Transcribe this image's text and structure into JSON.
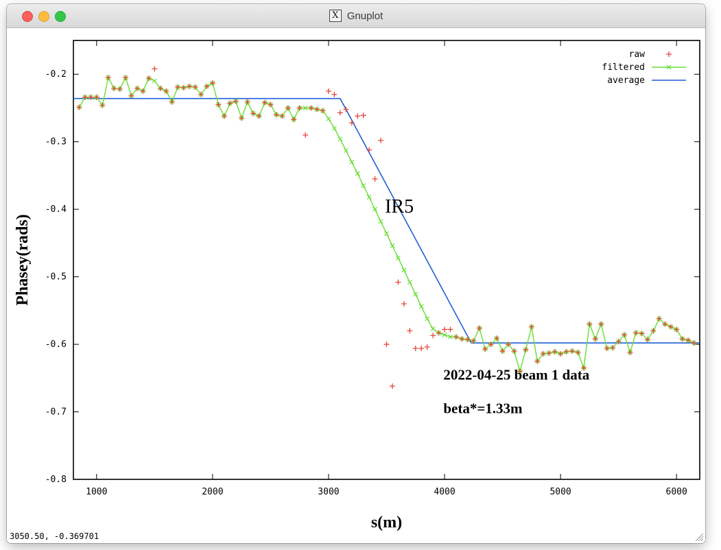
{
  "window": {
    "title": "Gnuplot",
    "title_icon": "x11-icon"
  },
  "status_bar": {
    "coordinates": "3050.50, -0.369701"
  },
  "chart_data": {
    "type": "line",
    "title": "",
    "xlabel": "s(m)",
    "ylabel": "Phasey(rads)",
    "xlim": [
      800,
      6200
    ],
    "ylim": [
      -0.8,
      -0.15
    ],
    "xticks": [
      1000,
      2000,
      3000,
      4000,
      5000,
      6000
    ],
    "yticks": [
      -0.8,
      -0.7,
      -0.6,
      -0.5,
      -0.4,
      -0.3,
      -0.2
    ],
    "ytick_labels": [
      "-0.8",
      "-0.7",
      "-0.6",
      "-0.5",
      "-0.4",
      "-0.3",
      "-0.2"
    ],
    "grid": false,
    "legend_position": "top-right",
    "annotations": [
      {
        "text": "IR5",
        "x": 3610,
        "y": -0.405
      },
      {
        "text": "2022-04-25 beam 1 data",
        "x": 3990,
        "y": -0.652
      },
      {
        "text": "beta*=1.33m",
        "x": 3990,
        "y": -0.702
      }
    ],
    "series": [
      {
        "name": "raw",
        "style": "points",
        "marker": "+",
        "color": "#e8443a",
        "x": [
          850,
          900,
          950,
          1000,
          1050,
          1100,
          1150,
          1200,
          1250,
          1300,
          1350,
          1400,
          1450,
          1500,
          1550,
          1600,
          1650,
          1700,
          1750,
          1800,
          1850,
          1900,
          1950,
          2000,
          2050,
          2100,
          2150,
          2200,
          2250,
          2300,
          2350,
          2400,
          2450,
          2500,
          2550,
          2600,
          2650,
          2700,
          2750,
          2800,
          2850,
          2900,
          2950,
          3000,
          3050,
          3100,
          3150,
          3200,
          3250,
          3300,
          3350,
          3400,
          3450,
          3500,
          3550,
          3600,
          3650,
          3700,
          3750,
          3800,
          3850,
          3900,
          3950,
          4000,
          4050,
          4100,
          4150,
          4200,
          4250,
          4300,
          4350,
          4400,
          4450,
          4500,
          4550,
          4600,
          4650,
          4700,
          4750,
          4800,
          4850,
          4900,
          4950,
          5000,
          5050,
          5100,
          5150,
          5200,
          5250,
          5300,
          5350,
          5400,
          5450,
          5500,
          5550,
          5600,
          5650,
          5700,
          5750,
          5800,
          5850,
          5900,
          5950,
          6000,
          6050,
          6100,
          6150
        ],
        "y": [
          -0.249,
          -0.234,
          -0.234,
          -0.234,
          -0.246,
          -0.205,
          -0.221,
          -0.222,
          -0.205,
          -0.232,
          -0.221,
          -0.225,
          -0.206,
          -0.192,
          -0.221,
          -0.225,
          -0.241,
          -0.219,
          -0.22,
          -0.218,
          -0.219,
          -0.23,
          -0.218,
          -0.213,
          -0.245,
          -0.262,
          -0.243,
          -0.24,
          -0.265,
          -0.241,
          -0.258,
          -0.262,
          -0.242,
          -0.245,
          -0.26,
          -0.262,
          -0.25,
          -0.267,
          -0.25,
          -0.29,
          -0.25,
          -0.252,
          -0.254,
          -0.225,
          -0.23,
          -0.257,
          -0.252,
          -0.272,
          -0.262,
          -0.261,
          -0.312,
          -0.355,
          -0.298,
          -0.6,
          -0.662,
          -0.508,
          -0.54,
          -0.58,
          -0.606,
          -0.606,
          -0.604,
          -0.587,
          -0.583,
          -0.578,
          -0.578,
          -0.589,
          -0.592,
          -0.593,
          -0.595,
          -0.576,
          -0.607,
          -0.6,
          -0.591,
          -0.61,
          -0.6,
          -0.61,
          -0.64,
          -0.608,
          -0.574,
          -0.625,
          -0.614,
          -0.613,
          -0.611,
          -0.614,
          -0.611,
          -0.61,
          -0.612,
          -0.635,
          -0.57,
          -0.592,
          -0.57,
          -0.606,
          -0.605,
          -0.596,
          -0.586,
          -0.612,
          -0.583,
          -0.584,
          -0.593,
          -0.58,
          -0.562,
          -0.57,
          -0.574,
          -0.578,
          -0.592,
          -0.594,
          -0.598
        ]
      },
      {
        "name": "filtered",
        "style": "linespoints",
        "marker": "x",
        "color": "#66dd33",
        "x": [
          850,
          900,
          950,
          1000,
          1050,
          1100,
          1150,
          1200,
          1250,
          1300,
          1350,
          1400,
          1450,
          1500,
          1550,
          1600,
          1650,
          1700,
          1750,
          1800,
          1850,
          1900,
          1950,
          2000,
          2050,
          2100,
          2150,
          2200,
          2250,
          2300,
          2350,
          2400,
          2450,
          2500,
          2550,
          2600,
          2650,
          2700,
          2750,
          2800,
          2850,
          2900,
          2950,
          3000,
          3050,
          3100,
          3150,
          3200,
          3250,
          3300,
          3350,
          3400,
          3450,
          3500,
          3550,
          3600,
          3650,
          3700,
          3750,
          3800,
          3850,
          3900,
          3950,
          4000,
          4050,
          4100,
          4150,
          4200,
          4250,
          4300,
          4350,
          4400,
          4450,
          4500,
          4550,
          4600,
          4650,
          4700,
          4750,
          4800,
          4850,
          4900,
          4950,
          5000,
          5050,
          5100,
          5150,
          5200,
          5250,
          5300,
          5350,
          5400,
          5450,
          5500,
          5550,
          5600,
          5650,
          5700,
          5750,
          5800,
          5850,
          5900,
          5950,
          6000,
          6050,
          6100,
          6150
        ],
        "y": [
          -0.249,
          -0.234,
          -0.234,
          -0.234,
          -0.246,
          -0.205,
          -0.221,
          -0.222,
          -0.205,
          -0.232,
          -0.221,
          -0.225,
          -0.206,
          -0.21,
          -0.221,
          -0.225,
          -0.241,
          -0.219,
          -0.22,
          -0.218,
          -0.219,
          -0.23,
          -0.218,
          -0.213,
          -0.245,
          -0.262,
          -0.243,
          -0.24,
          -0.265,
          -0.241,
          -0.258,
          -0.262,
          -0.242,
          -0.245,
          -0.26,
          -0.262,
          -0.25,
          -0.267,
          -0.25,
          -0.25,
          -0.25,
          -0.252,
          -0.254,
          -0.266,
          -0.28,
          -0.296,
          -0.313,
          -0.33,
          -0.347,
          -0.365,
          -0.382,
          -0.4,
          -0.418,
          -0.436,
          -0.454,
          -0.472,
          -0.49,
          -0.508,
          -0.526,
          -0.544,
          -0.562,
          -0.577,
          -0.583,
          -0.586,
          -0.589,
          -0.589,
          -0.592,
          -0.593,
          -0.595,
          -0.576,
          -0.607,
          -0.6,
          -0.591,
          -0.61,
          -0.6,
          -0.61,
          -0.64,
          -0.608,
          -0.574,
          -0.625,
          -0.614,
          -0.613,
          -0.611,
          -0.614,
          -0.611,
          -0.61,
          -0.612,
          -0.635,
          -0.57,
          -0.592,
          -0.57,
          -0.606,
          -0.605,
          -0.596,
          -0.586,
          -0.612,
          -0.583,
          -0.584,
          -0.593,
          -0.58,
          -0.562,
          -0.57,
          -0.574,
          -0.578,
          -0.592,
          -0.594,
          -0.598
        ]
      },
      {
        "name": "average",
        "style": "lines",
        "color": "#1f5fd6",
        "x": [
          800,
          3100,
          4230,
          6200
        ],
        "y": [
          -0.236,
          -0.236,
          -0.598,
          -0.598
        ]
      }
    ]
  }
}
